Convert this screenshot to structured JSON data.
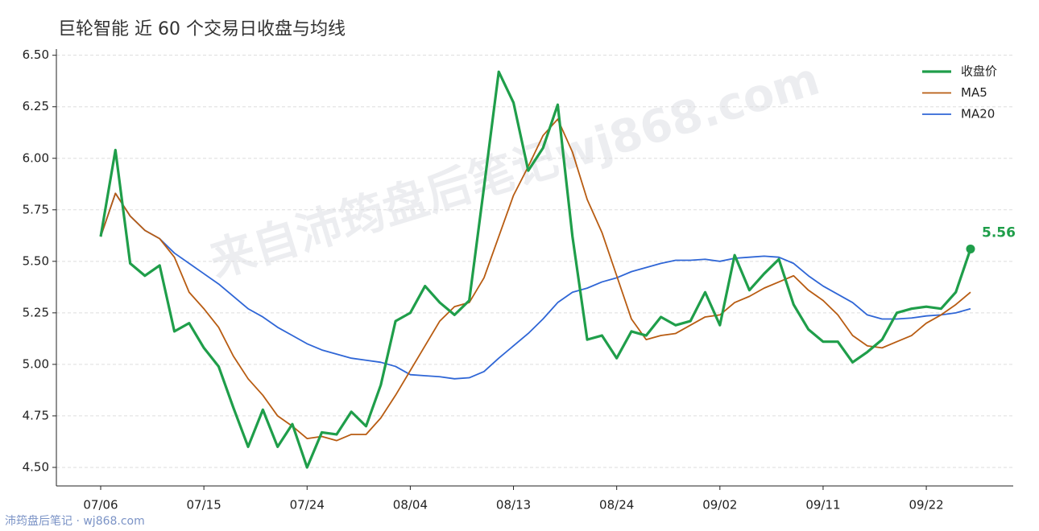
{
  "chart_data": {
    "type": "line",
    "title": "巨轮智能 近 60 个交易日收盘与均线",
    "watermark": "来自沛筠盘后笔记wj868.com",
    "footer": "沛筠盘后笔记 · wj868.com",
    "categories": [
      "07/06",
      null,
      null,
      null,
      null,
      null,
      null,
      "07/15",
      null,
      null,
      null,
      null,
      null,
      null,
      "07/24",
      null,
      null,
      null,
      null,
      null,
      null,
      "08/04",
      null,
      null,
      null,
      null,
      null,
      null,
      "08/13",
      null,
      null,
      null,
      null,
      null,
      null,
      "08/24",
      null,
      null,
      null,
      null,
      null,
      null,
      "09/02",
      null,
      null,
      null,
      null,
      null,
      null,
      "09/11",
      null,
      null,
      null,
      null,
      null,
      null,
      "09/22",
      null,
      null,
      null
    ],
    "series": [
      {
        "name": "收盘价",
        "color": "#1f9e4a",
        "width": 3.2,
        "values": [
          5.62,
          6.04,
          5.49,
          5.43,
          5.48,
          5.16,
          5.2,
          5.08,
          4.99,
          4.79,
          4.6,
          4.78,
          4.6,
          4.71,
          4.5,
          4.67,
          4.66,
          4.77,
          4.7,
          4.9,
          5.21,
          5.25,
          5.38,
          5.3,
          5.24,
          5.31,
          5.86,
          6.42,
          6.27,
          5.94,
          6.05,
          6.26,
          5.62,
          5.12,
          5.14,
          5.03,
          5.16,
          5.14,
          5.23,
          5.19,
          5.21,
          5.35,
          5.19,
          5.53,
          5.36,
          5.44,
          5.51,
          5.29,
          5.17,
          5.11,
          5.11,
          5.01,
          5.06,
          5.12,
          5.25,
          5.27,
          5.28,
          5.27,
          5.35,
          5.56
        ],
        "value_labels": [
          null,
          null,
          null,
          null,
          null,
          null,
          null,
          null,
          null,
          null,
          null,
          null,
          null,
          null,
          null,
          null,
          null,
          null,
          null,
          null,
          null,
          null,
          null,
          null,
          null,
          null,
          null,
          null,
          null,
          null,
          null,
          null,
          null,
          null,
          null,
          null,
          null,
          null,
          null,
          null,
          null,
          null,
          null,
          null,
          null,
          null,
          null,
          null,
          null,
          null,
          null,
          null,
          null,
          null,
          null,
          null,
          null,
          null,
          null,
          "5.56"
        ]
      },
      {
        "name": "MA5",
        "color": "#b85c12",
        "width": 1.8,
        "values": [
          5.62,
          5.83,
          5.72,
          5.65,
          5.61,
          5.52,
          5.35,
          5.27,
          5.18,
          5.04,
          4.93,
          4.85,
          4.75,
          4.7,
          4.64,
          4.65,
          4.63,
          4.66,
          4.66,
          4.74,
          4.85,
          4.97,
          5.09,
          5.21,
          5.28,
          5.3,
          5.42,
          5.62,
          5.82,
          5.96,
          6.11,
          6.19,
          6.03,
          5.8,
          5.64,
          5.43,
          5.22,
          5.12,
          5.14,
          5.15,
          5.19,
          5.23,
          5.24,
          5.3,
          5.33,
          5.37,
          5.4,
          5.43,
          5.36,
          5.31,
          5.24,
          5.14,
          5.09,
          5.08,
          5.11,
          5.14,
          5.2,
          5.24,
          5.29,
          5.35
        ]
      },
      {
        "name": "MA20",
        "color": "#2f66d6",
        "width": 1.8,
        "values": [
          5.62,
          5.83,
          5.72,
          5.65,
          5.61,
          5.54,
          5.49,
          5.44,
          5.39,
          5.33,
          5.27,
          5.23,
          5.18,
          5.14,
          5.1,
          5.07,
          5.05,
          5.03,
          5.02,
          5.01,
          4.99,
          4.95,
          4.945,
          4.94,
          4.93,
          4.935,
          4.965,
          5.03,
          5.09,
          5.15,
          5.22,
          5.3,
          5.35,
          5.37,
          5.4,
          5.42,
          5.45,
          5.47,
          5.49,
          5.505,
          5.505,
          5.51,
          5.5,
          5.515,
          5.52,
          5.525,
          5.52,
          5.49,
          5.43,
          5.38,
          5.34,
          5.3,
          5.24,
          5.22,
          5.22,
          5.225,
          5.235,
          5.24,
          5.25,
          5.27
        ]
      }
    ],
    "ylim": [
      4.41,
      6.53
    ],
    "yticks": [
      {
        "value": 4.5,
        "label": "4.50"
      },
      4.75,
      {
        "value": 5,
        "label": "5.00"
      },
      5.25,
      {
        "value": 5.5,
        "label": "5.50"
      },
      5.75,
      {
        "value": 6,
        "label": "6.00"
      },
      6.25,
      {
        "value": 6.5,
        "label": "6.50"
      }
    ],
    "grid": true,
    "legend": "upper right"
  }
}
